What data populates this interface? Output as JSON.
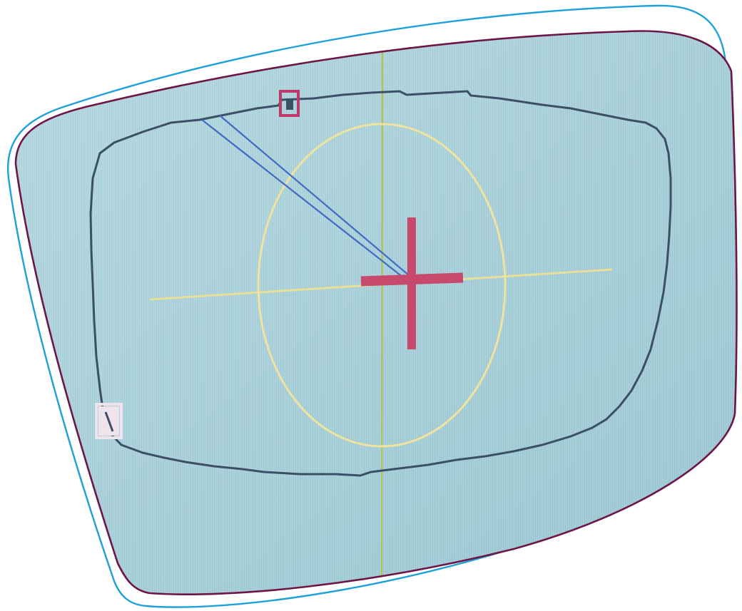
{
  "scene": {
    "subject": "lens-tracing-display-photo",
    "colors": {
      "page_background": "#ffffff",
      "screen_fill": "#9fcbd6",
      "screen_fill_light": "#b9dbe2",
      "outer_outline": "#1ea0d8",
      "inner_outline": "#6e1547",
      "lens_trace": "#3b4f66",
      "reference_circle": "#eee3a0",
      "axis_line": "#e8df9a",
      "vertical_axis": "#b9c14e",
      "center_cross": "#c74a6c",
      "marker_box": "#c2386a",
      "measure_line": "#3f6bc6",
      "side_marker": "#efe3ec"
    },
    "icons": [
      "center-crosshair-icon",
      "top-marker-icon",
      "side-marker-icon"
    ]
  }
}
